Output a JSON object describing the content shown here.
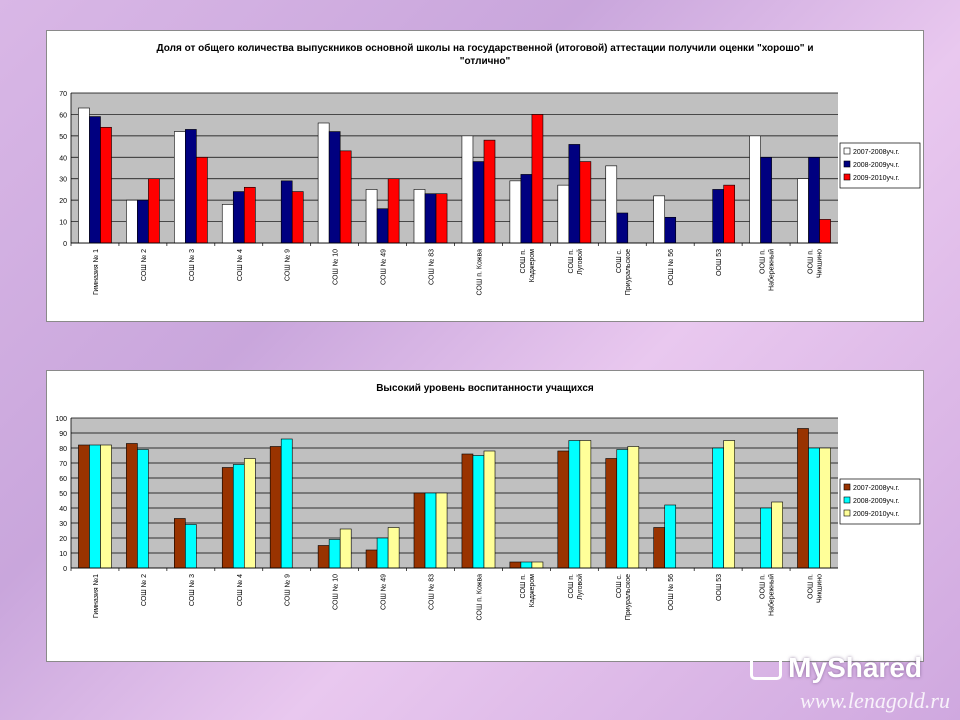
{
  "chart_data": [
    {
      "type": "bar",
      "title": "Доля от общего количества выпускников основной школы на государственной (итоговой) аттестации получили оценки \"хорошо\" и \"отлично\"",
      "title_lines": [
        "Доля от общего количества выпускников основной школы на государственной (итоговой) аттестации получили оценки \"хорошо\" и",
        "\"отлично\""
      ],
      "ylim": [
        0,
        70
      ],
      "yticks": [
        0,
        10,
        20,
        30,
        40,
        50,
        60,
        70
      ],
      "grid": true,
      "legend_position": "right",
      "categories": [
        "Гимназия № 1",
        "СОШ № 2",
        "СОШ № 3",
        "СОШ № 4",
        "СОШ № 9",
        "СОШ № 10",
        "СОШ № 49",
        "СОШ № 83",
        "СОШ п. Кожва",
        "СОШ п. Каджером",
        "СОШ п. Луговой",
        "СОШ с. Приуральское",
        "ООШ № 56",
        "ООШ 53",
        "ООШ п. Набережный",
        "ООШ п. Чикшино"
      ],
      "category_lines": [
        [
          "Гимназия № 1"
        ],
        [
          "СОШ № 2"
        ],
        [
          "СОШ № 3"
        ],
        [
          "СОШ № 4"
        ],
        [
          "СОШ № 9"
        ],
        [
          "СОШ № 10"
        ],
        [
          "СОШ № 49"
        ],
        [
          "СОШ № 83"
        ],
        [
          "СОШ п. Кожва"
        ],
        [
          "СОШ п.",
          "Каджером"
        ],
        [
          "СОШ п.",
          "Луговой"
        ],
        [
          "СОШ с.",
          "Приуральское"
        ],
        [
          "ООШ № 56"
        ],
        [
          "ООШ 53"
        ],
        [
          "ООШ п.",
          "Набережный"
        ],
        [
          "ООШ п.",
          "Чикшино"
        ]
      ],
      "series": [
        {
          "name": "2007-2008уч.г.",
          "color": "#ffffff",
          "values": [
            63,
            20,
            52,
            18,
            null,
            56,
            25,
            25,
            50,
            29,
            27,
            36,
            22,
            null,
            50,
            30
          ]
        },
        {
          "name": "2008-2009уч.г.",
          "color": "#000080",
          "values": [
            59,
            20,
            53,
            24,
            29,
            52,
            16,
            23,
            38,
            32,
            46,
            14,
            12,
            25,
            40,
            40
          ]
        },
        {
          "name": "2009-2010уч.г.",
          "color": "#ff0000",
          "values": [
            54,
            30,
            40,
            26,
            24,
            43,
            30,
            23,
            48,
            60,
            38,
            null,
            null,
            27,
            null,
            11
          ]
        }
      ]
    },
    {
      "type": "bar",
      "title": "Высокий уровень воспитанности учащихся",
      "title_lines": [
        "Высокий уровень воспитанности учащихся"
      ],
      "ylim": [
        0,
        100
      ],
      "yticks": [
        0,
        10,
        20,
        30,
        40,
        50,
        60,
        70,
        80,
        90,
        100
      ],
      "grid": true,
      "legend_position": "right",
      "categories": [
        "Гимназия №1",
        "СОШ № 2",
        "СОШ № 3",
        "СОШ № 4",
        "СОШ № 9",
        "СОШ № 10",
        "СОШ № 49",
        "СОШ № 83",
        "СОШ п. Кожва",
        "СОШ п. Каджером",
        "СОШ п. Луговой",
        "СОШ с. Приуральское",
        "ООШ № 56",
        "ООШ 53",
        "ООШ п. Набережный",
        "ООШ п. Чикшино"
      ],
      "category_lines": [
        [
          "Гимназия №1"
        ],
        [
          "СОШ № 2"
        ],
        [
          "СОШ № 3"
        ],
        [
          "СОШ № 4"
        ],
        [
          "СОШ № 9"
        ],
        [
          "СОШ № 10"
        ],
        [
          "СОШ № 49"
        ],
        [
          "СОШ № 83"
        ],
        [
          "СОШ п. Кожва"
        ],
        [
          "СОШ п.",
          "Каджером"
        ],
        [
          "СОШ п.",
          "Луговой"
        ],
        [
          "СОШ с.",
          "Приуральское"
        ],
        [
          "ООШ № 56"
        ],
        [
          "ООШ 53"
        ],
        [
          "ООШ п.",
          "Набережный"
        ],
        [
          "ООШ п.",
          "Чикшино"
        ]
      ],
      "series": [
        {
          "name": "2007-2008уч.г.",
          "color": "#993300",
          "values": [
            82,
            83,
            33,
            67,
            81,
            15,
            12,
            50,
            76,
            4,
            78,
            73,
            27,
            null,
            null,
            93
          ]
        },
        {
          "name": "2008-2009уч.г.",
          "color": "#00ffff",
          "values": [
            82,
            79,
            29,
            69,
            86,
            19,
            20,
            50,
            75,
            4,
            85,
            79,
            42,
            80,
            40,
            80
          ]
        },
        {
          "name": "2009-2010уч.г.",
          "color": "#ffff99",
          "values": [
            82,
            null,
            null,
            73,
            null,
            26,
            27,
            50,
            78,
            4,
            85,
            81,
            null,
            85,
            44,
            80
          ]
        }
      ]
    }
  ],
  "watermark": {
    "brand": "MyShared",
    "url": "www.lenagold.ru"
  }
}
